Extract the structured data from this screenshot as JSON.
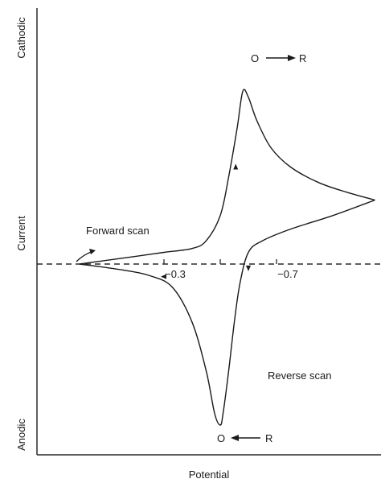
{
  "chart_data": {
    "type": "line",
    "xlabel": "Potential",
    "ylabel": "Current",
    "y_top_label": "Cathodic",
    "y_bottom_label": "Anodic",
    "x_ticks": [
      {
        "value": -0.3,
        "label": "−0.3"
      },
      {
        "value": -0.7,
        "label": "−0.7"
      }
    ],
    "xlim": [
      0.0,
      -1.1
    ],
    "ylim": [
      -1.0,
      1.0
    ],
    "baseline": {
      "style": "dashed",
      "y": 0
    },
    "annotations": {
      "forward_scan": "Forward scan",
      "reverse_scan": "Reverse scan",
      "reduction_O": "O",
      "reduction_R": "R",
      "oxidation_O": "O",
      "oxidation_R": "R"
    },
    "series": [
      {
        "segment": "forward",
        "points": [
          [
            0.0,
            0.0
          ],
          [
            -0.1,
            0.02
          ],
          [
            -0.2,
            0.04
          ],
          [
            -0.3,
            0.06
          ],
          [
            -0.4,
            0.08
          ],
          [
            -0.45,
            0.12
          ],
          [
            -0.5,
            0.25
          ],
          [
            -0.53,
            0.45
          ],
          [
            -0.56,
            0.7
          ],
          [
            -0.58,
            0.89
          ],
          [
            -0.6,
            0.86
          ],
          [
            -0.63,
            0.74
          ],
          [
            -0.68,
            0.6
          ],
          [
            -0.75,
            0.5
          ],
          [
            -0.85,
            0.42
          ],
          [
            -0.95,
            0.37
          ],
          [
            -1.05,
            0.33
          ]
        ]
      },
      {
        "segment": "reverse",
        "points": [
          [
            -1.05,
            0.33
          ],
          [
            -0.9,
            0.25
          ],
          [
            -0.75,
            0.18
          ],
          [
            -0.65,
            0.12
          ],
          [
            -0.6,
            0.06
          ],
          [
            -0.57,
            -0.1
          ],
          [
            -0.55,
            -0.3
          ],
          [
            -0.53,
            -0.55
          ],
          [
            -0.51,
            -0.77
          ],
          [
            -0.5,
            -0.83
          ],
          [
            -0.48,
            -0.77
          ],
          [
            -0.45,
            -0.55
          ],
          [
            -0.4,
            -0.3
          ],
          [
            -0.33,
            -0.12
          ],
          [
            -0.25,
            -0.06
          ],
          [
            -0.15,
            -0.03
          ],
          [
            0.0,
            0.0
          ]
        ]
      }
    ]
  },
  "colors": {
    "line": "#1a1a1a",
    "axis": "#2a2a2a",
    "background": "#ffffff"
  }
}
